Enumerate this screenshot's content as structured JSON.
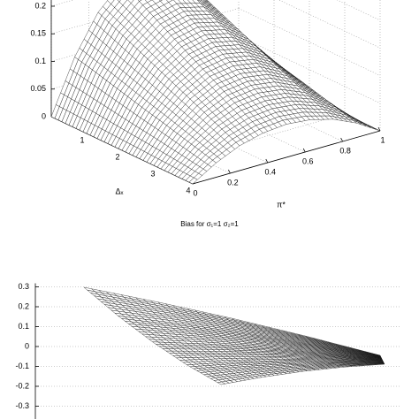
{
  "chart_data": [
    {
      "type": "surface",
      "x_label": "Δₓ",
      "y_label": "π*",
      "x": [
        0,
        0.5,
        1,
        1.5,
        2,
        2.5,
        3,
        3.5,
        4
      ],
      "y": [
        0,
        0.125,
        0.25,
        0.375,
        0.5,
        0.625,
        0.75,
        0.875,
        1
      ],
      "z": [
        [
          0,
          0.096,
          0.165,
          0.206,
          0.22,
          0.206,
          0.165,
          0.096,
          0
        ],
        [
          0,
          0.088,
          0.15,
          0.188,
          0.2,
          0.188,
          0.15,
          0.088,
          0
        ],
        [
          0,
          0.079,
          0.135,
          0.169,
          0.18,
          0.169,
          0.135,
          0.079,
          0
        ],
        [
          0,
          0.07,
          0.12,
          0.15,
          0.16,
          0.15,
          0.12,
          0.07,
          0
        ],
        [
          0,
          0.061,
          0.105,
          0.131,
          0.14,
          0.131,
          0.105,
          0.061,
          0
        ],
        [
          0,
          0.053,
          0.09,
          0.113,
          0.12,
          0.113,
          0.09,
          0.053,
          0
        ],
        [
          0,
          0.044,
          0.075,
          0.094,
          0.1,
          0.094,
          0.075,
          0.044,
          0
        ],
        [
          0,
          0.035,
          0.06,
          0.075,
          0.08,
          0.075,
          0.06,
          0.035,
          0
        ],
        [
          0,
          0.026,
          0.045,
          0.056,
          0.06,
          0.056,
          0.045,
          0.026,
          0
        ]
      ],
      "xlim": [
        0,
        4
      ],
      "ylim": [
        0,
        1
      ],
      "zlim": [
        0,
        0.2
      ],
      "xticks": [
        1,
        2,
        3,
        4
      ],
      "yticks": [
        0,
        0.2,
        0.4,
        0.6,
        0.8,
        1
      ],
      "zticks": [
        0,
        0.05,
        0.1,
        0.15,
        0.2
      ],
      "grid": true
    },
    {
      "type": "surface",
      "title": "Bias for σ₁=1 σ₂=1",
      "z": [
        [
          0.24,
          0.166,
          0.085,
          -0.004,
          -0.1
        ],
        [
          0.123,
          0.078,
          0.026,
          -0.033,
          -0.1
        ],
        [
          0.02,
          0.001,
          -0.025,
          -0.059,
          -0.1
        ],
        [
          -0.068,
          -0.065,
          -0.069,
          -0.081,
          -0.1
        ],
        [
          -0.14,
          -0.119,
          -0.105,
          -0.099,
          -0.1
        ]
      ],
      "zlim": [
        -0.3,
        0.3
      ],
      "zticks": [
        -0.3,
        -0.2,
        -0.1,
        0,
        0.1,
        0.2,
        0.3
      ],
      "grid": true
    }
  ]
}
